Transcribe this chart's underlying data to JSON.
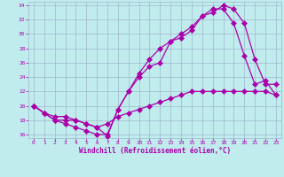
{
  "xlabel": "Windchill (Refroidissement éolien,°C)",
  "bg_color": "#c0ecee",
  "grid_color": "#a0b8cc",
  "line_color": "#aa00aa",
  "xlim": [
    -0.5,
    23.5
  ],
  "ylim": [
    15.5,
    34.5
  ],
  "xticks": [
    0,
    1,
    2,
    3,
    4,
    5,
    6,
    7,
    8,
    9,
    10,
    11,
    12,
    13,
    14,
    15,
    16,
    17,
    18,
    19,
    20,
    21,
    22,
    23
  ],
  "yticks": [
    16,
    18,
    20,
    22,
    24,
    26,
    28,
    30,
    32,
    34
  ],
  "line1_x": [
    0,
    1,
    2,
    3,
    4,
    5,
    6,
    7,
    8,
    9,
    10,
    11,
    12,
    13,
    14,
    15,
    16,
    17,
    18,
    19,
    20,
    21,
    22,
    23
  ],
  "line1_y": [
    20.0,
    19.0,
    18.0,
    17.5,
    17.0,
    16.5,
    16.0,
    16.0,
    19.5,
    22.0,
    24.0,
    25.5,
    26.0,
    29.0,
    29.5,
    30.5,
    32.5,
    33.0,
    34.0,
    33.5,
    31.5,
    26.5,
    23.0,
    23.0
  ],
  "line2_x": [
    0,
    1,
    2,
    3,
    4,
    5,
    6,
    7,
    8,
    9,
    10,
    11,
    12,
    13,
    14,
    15,
    16,
    17,
    18,
    19,
    20,
    21,
    22,
    23
  ],
  "line2_y": [
    20.0,
    19.0,
    18.0,
    18.0,
    18.0,
    17.5,
    17.0,
    15.8,
    19.5,
    22.0,
    24.5,
    26.5,
    28.0,
    29.0,
    30.0,
    31.0,
    32.5,
    33.5,
    33.5,
    31.5,
    27.0,
    23.0,
    23.5,
    21.5
  ],
  "line3_x": [
    0,
    1,
    2,
    3,
    4,
    5,
    6,
    7,
    8,
    9,
    10,
    11,
    12,
    13,
    14,
    15,
    16,
    17,
    18,
    19,
    20,
    21,
    22,
    23
  ],
  "line3_y": [
    20.0,
    19.0,
    18.5,
    18.5,
    18.0,
    17.5,
    17.0,
    17.5,
    18.5,
    19.0,
    19.5,
    20.0,
    20.5,
    21.0,
    21.5,
    22.0,
    22.0,
    22.0,
    22.0,
    22.0,
    22.0,
    22.0,
    22.0,
    21.5
  ]
}
